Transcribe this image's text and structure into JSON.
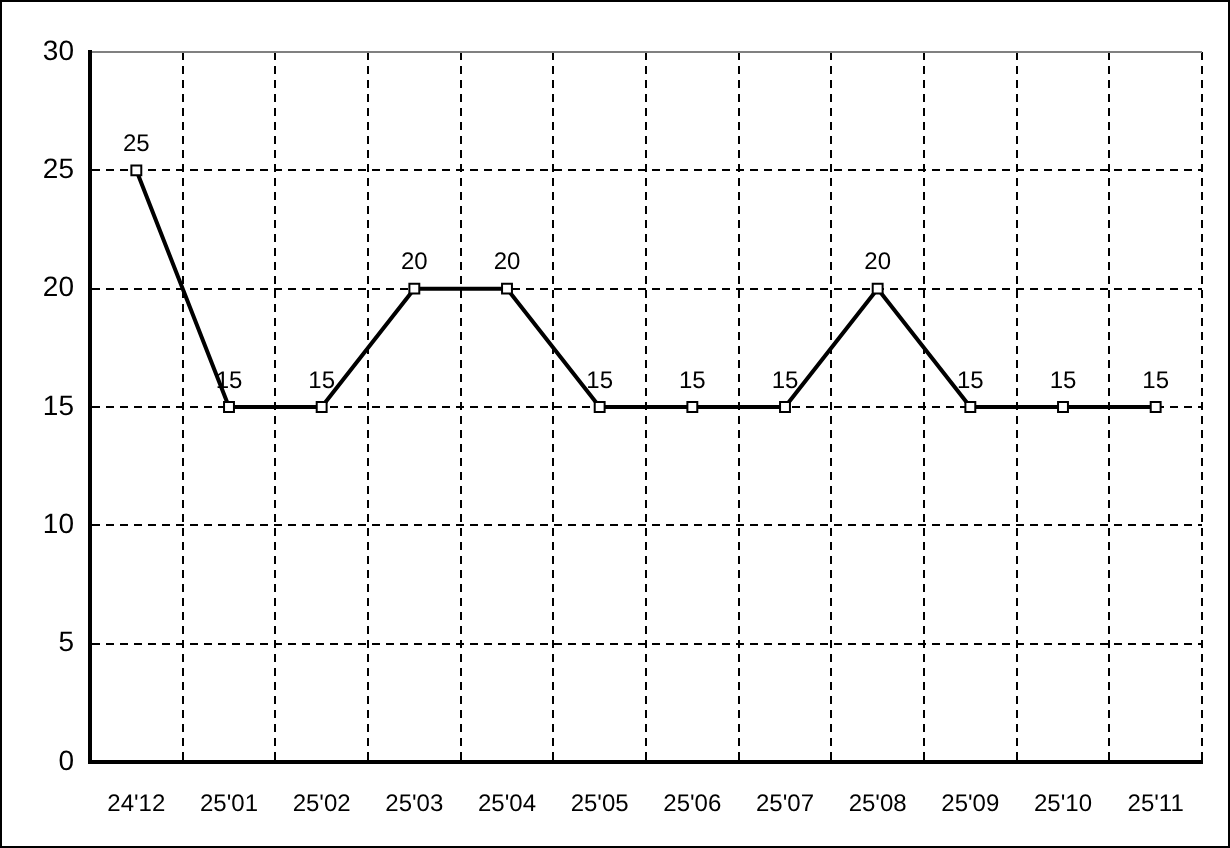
{
  "chart_data": {
    "type": "line",
    "categories": [
      "24'12",
      "25'01",
      "25'02",
      "25'03",
      "25'04",
      "25'05",
      "25'06",
      "25'07",
      "25'08",
      "25'09",
      "25'10",
      "25'11"
    ],
    "values": [
      25,
      15,
      15,
      20,
      20,
      15,
      15,
      15,
      20,
      15,
      15,
      15
    ],
    "color": "#000000",
    "ylim": [
      0,
      30
    ],
    "yticks": [
      0,
      5,
      10,
      15,
      20,
      25,
      30
    ],
    "grid": true,
    "marker": "square",
    "line_style": "solid",
    "data_labels": true
  }
}
